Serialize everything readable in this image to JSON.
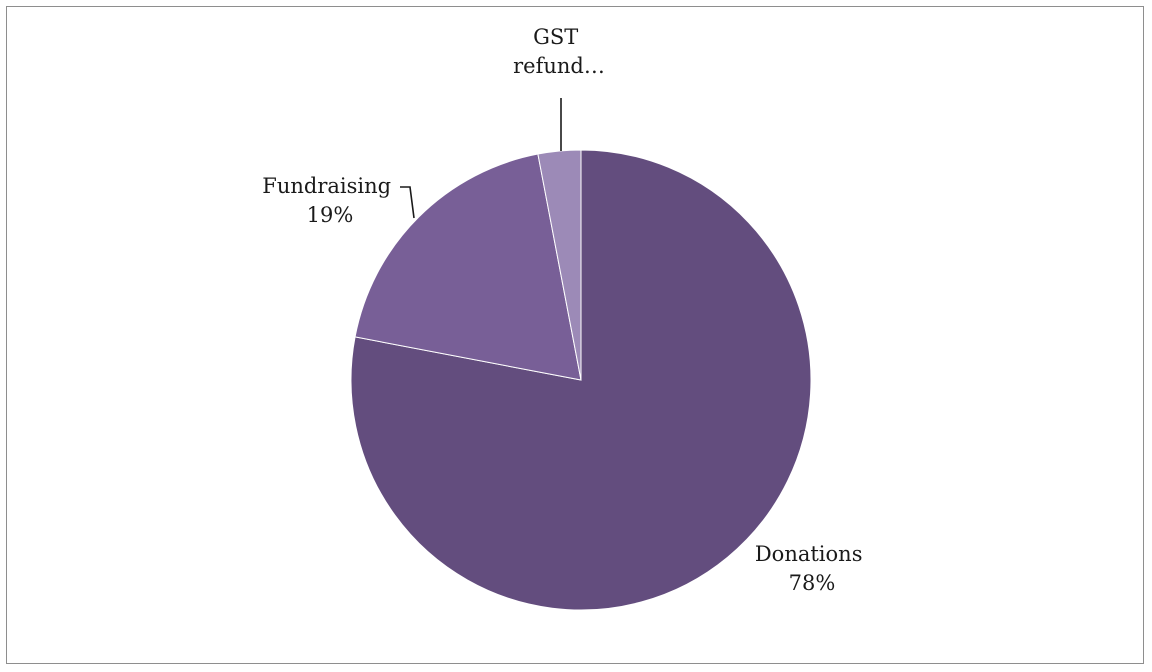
{
  "chart_data": {
    "type": "pie",
    "title": "",
    "start_angle_deg": 0,
    "direction": "clockwise",
    "legend": "none",
    "slices": [
      {
        "name": "Donations",
        "label_lines": [
          "Donations",
          "78%"
        ],
        "value": 78,
        "color": "#634d7e"
      },
      {
        "name": "Fundraising",
        "label_lines": [
          "Fundraising",
          "19%"
        ],
        "value": 19,
        "color": "#785f97"
      },
      {
        "name": "GST refund",
        "label_lines": [
          "GST",
          "refund…"
        ],
        "value": 3,
        "color": "#9c8ab7"
      }
    ]
  }
}
